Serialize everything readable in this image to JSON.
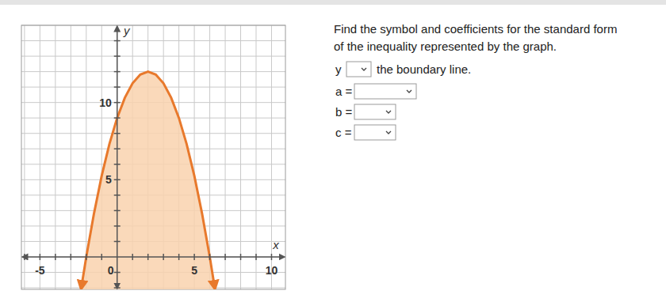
{
  "chart_data": {
    "type": "area",
    "x_label": "x",
    "y_label": "y",
    "x": [
      -2.3,
      -2,
      -1.5,
      -1,
      -0.5,
      0,
      0.5,
      1,
      1.5,
      2,
      2.5,
      3,
      3.5,
      4,
      4.5,
      5,
      5.5,
      6,
      6.3
    ],
    "values": [
      -1.87,
      0,
      2.81,
      5.25,
      7.31,
      9,
      10.31,
      11.25,
      11.81,
      12,
      11.81,
      11.25,
      10.31,
      9,
      7.31,
      5.25,
      2.81,
      0,
      -1.87
    ],
    "color": "#e8792c",
    "line_style": "solid",
    "xlim": [
      -6.2,
      10.9
    ],
    "ylim": [
      -2.1,
      15
    ],
    "xticks": [
      -5,
      0,
      5,
      10
    ],
    "yticks": [
      5,
      10
    ],
    "grid": true
  },
  "prompt": {
    "lines": [
      "Find the symbol and coefficients for the standard form",
      "of the inequality represented by the graph."
    ],
    "symbol_row": {
      "left": "y",
      "right": "the boundary line."
    },
    "coefficients": [
      "a =",
      "b =",
      "c ="
    ]
  }
}
